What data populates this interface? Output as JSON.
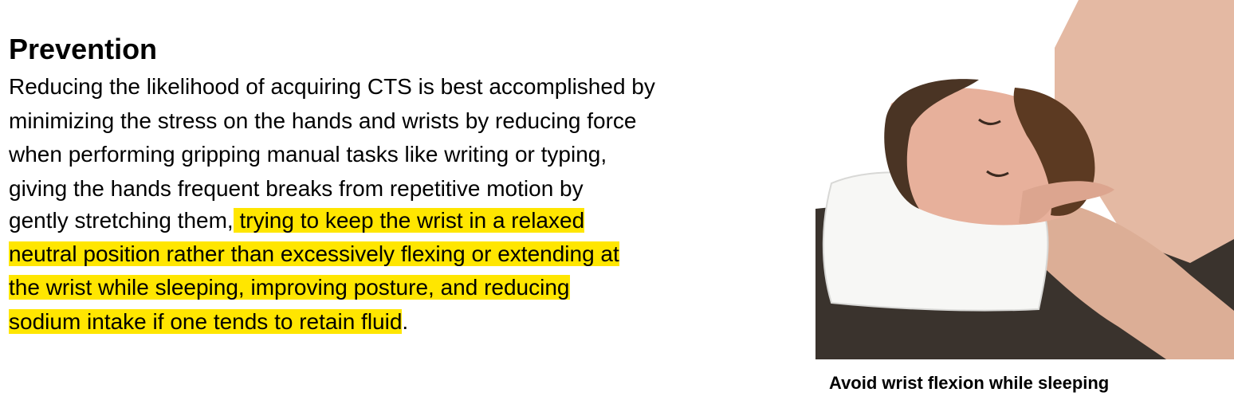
{
  "heading": "Prevention",
  "body_lines": [
    {
      "plain": "Reducing the likelihood of acquiring CTS is best accomplished by",
      "highlighted": "",
      "tail": ""
    },
    {
      "plain": "minimizing the stress on the hands and wrists by reducing force",
      "highlighted": "",
      "tail": ""
    },
    {
      "plain": "when performing gripping manual tasks like writing or typing,",
      "highlighted": "",
      "tail": ""
    },
    {
      "plain": "giving the hands frequent breaks from repetitive motion by",
      "highlighted": "",
      "tail": ""
    },
    {
      "plain": "gently stretching them,",
      "highlighted": " trying to keep the wrist in a relaxed",
      "tail": ""
    },
    {
      "plain": "",
      "highlighted": "neutral position rather than excessively flexing or extending at",
      "tail": ""
    },
    {
      "plain": "",
      "highlighted": "the wrist while sleeping, improving posture, and reducing",
      "tail": ""
    },
    {
      "plain": "",
      "highlighted": "sodium intake if one tends to retain fluid",
      "tail": "."
    }
  ],
  "highlight_color": "#ffe600",
  "photo": {
    "caption": "Avoid wrist flexion while sleeping"
  }
}
